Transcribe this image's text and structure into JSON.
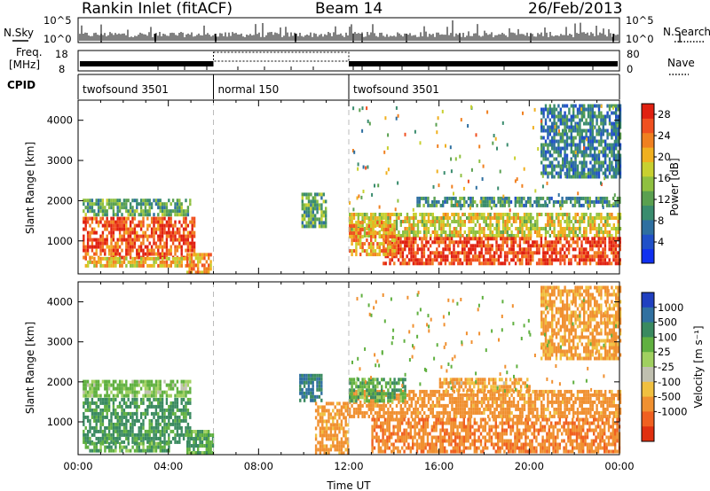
{
  "header": {
    "station": "Rankin Inlet (fitACF)",
    "beam": "Beam 14",
    "date": "26/Feb/2013"
  },
  "panels": {
    "nsky_label": "N.Sky",
    "nsearch_label": "N.Search",
    "noise_ticks": [
      "10^5",
      "10^0"
    ],
    "freq_label_1": "Freq.",
    "freq_label_2": "[MHz]",
    "freq_ticks": [
      "18",
      "8"
    ],
    "nave_label": "Nave",
    "nave_ticks": [
      "80",
      "0"
    ],
    "cpid_label": "CPID",
    "cpid_segments": [
      {
        "name": "twofsound 3501",
        "start": 0,
        "end": 6
      },
      {
        "name": "normal 150",
        "start": 6,
        "end": 12
      },
      {
        "name": "twofsound 3501",
        "start": 12,
        "end": 24
      }
    ]
  },
  "chart_data": [
    {
      "type": "heatmap",
      "quantity": "Power",
      "xlabel": "",
      "ylabel": "Slant Range [km]",
      "xlim": [
        0,
        24
      ],
      "ylim": [
        180,
        4500
      ],
      "yticks": [
        "1000",
        "2000",
        "3000",
        "4000"
      ],
      "colorbar": {
        "label": "Power [dB]",
        "ticks": [
          "4",
          "8",
          "12",
          "16",
          "20",
          "24",
          "28"
        ],
        "colors": [
          "#1030f0",
          "#2050c8",
          "#2e6fa0",
          "#3a8c6e",
          "#5aa050",
          "#8fc040",
          "#c8d030",
          "#f0b020",
          "#f08020",
          "#f05020",
          "#e02010"
        ]
      },
      "regions": [
        {
          "t0": 0.2,
          "t1": 5.2,
          "r0": 600,
          "r1": 1600,
          "value": 26
        },
        {
          "t0": 0.2,
          "t1": 5.0,
          "r0": 1650,
          "r1": 2050,
          "value": 12
        },
        {
          "t0": 0.3,
          "t1": 5.0,
          "r0": 350,
          "r1": 600,
          "value": 20
        },
        {
          "t0": 4.8,
          "t1": 5.9,
          "r0": 180,
          "r1": 700,
          "value": 22
        },
        {
          "t0": 9.9,
          "t1": 11.0,
          "r0": 1400,
          "r1": 2200,
          "value": 12
        },
        {
          "t0": 12.0,
          "t1": 24.0,
          "r0": 1100,
          "r1": 1700,
          "value": 18
        },
        {
          "t0": 13.5,
          "t1": 24.0,
          "r0": 400,
          "r1": 1100,
          "value": 27
        },
        {
          "t0": 12.0,
          "t1": 14.0,
          "r0": 700,
          "r1": 1500,
          "value": 22
        },
        {
          "t0": 15.0,
          "t1": 24.0,
          "r0": 1900,
          "r1": 2100,
          "value": 10
        },
        {
          "t0": 20.5,
          "t1": 24.0,
          "r0": 2600,
          "r1": 4400,
          "value": 8
        }
      ]
    },
    {
      "type": "heatmap",
      "quantity": "Velocity",
      "xlabel": "Time UT",
      "ylabel": "Slant Range [km]",
      "xlim": [
        0,
        24
      ],
      "ylim": [
        180,
        4500
      ],
      "xticks": [
        "00:00",
        "04:00",
        "08:00",
        "12:00",
        "16:00",
        "20:00",
        "00:00"
      ],
      "yticks": [
        "1000",
        "2000",
        "3000",
        "4000"
      ],
      "colorbar": {
        "label": "Velocity [m s⁻¹]",
        "ticks": [
          "1000",
          "500",
          "100",
          "25",
          "-25",
          "-100",
          "-500",
          "-1000"
        ],
        "colors": [
          "#2040c0",
          "#3070a0",
          "#3a8a60",
          "#60b040",
          "#a0d060",
          "#c0c0b0",
          "#f0c040",
          "#f09030",
          "#f06020",
          "#e03010"
        ]
      },
      "regions": [
        {
          "t0": 0.2,
          "t1": 5.0,
          "r0": 500,
          "r1": 1600,
          "value": 150
        },
        {
          "t0": 0.2,
          "t1": 5.0,
          "r0": 1650,
          "r1": 2050,
          "value": 40
        },
        {
          "t0": 0.3,
          "t1": 4.0,
          "r0": 250,
          "r1": 500,
          "value": 80
        },
        {
          "t0": 4.8,
          "t1": 6.0,
          "r0": 180,
          "r1": 800,
          "value": 100
        },
        {
          "t0": 9.8,
          "t1": 10.8,
          "r0": 1500,
          "r1": 2200,
          "value": 600
        },
        {
          "t0": 10.5,
          "t1": 12.0,
          "r0": 200,
          "r1": 1500,
          "value": -200
        },
        {
          "t0": 12.0,
          "t1": 24.0,
          "r0": 1100,
          "r1": 1800,
          "value": -250
        },
        {
          "t0": 13.0,
          "t1": 24.0,
          "r0": 300,
          "r1": 1100,
          "value": -400
        },
        {
          "t0": 12.0,
          "t1": 14.5,
          "r0": 1500,
          "r1": 2100,
          "value": 80
        },
        {
          "t0": 16.0,
          "t1": 20.0,
          "r0": 1800,
          "r1": 2100,
          "value": -120
        },
        {
          "t0": 20.5,
          "t1": 24.0,
          "r0": 2600,
          "r1": 4400,
          "value": -150
        }
      ]
    }
  ]
}
